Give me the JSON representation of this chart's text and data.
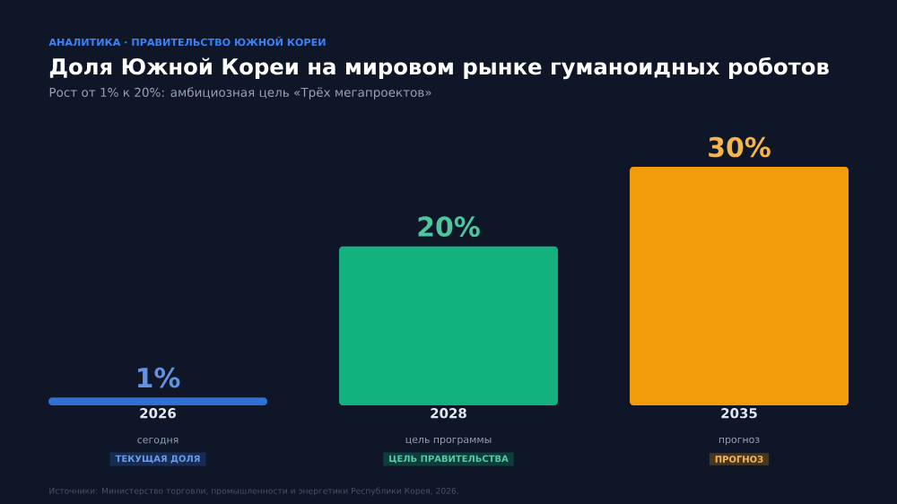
{
  "chart_data": {
    "type": "bar",
    "title": "Доля Южной Кореи на мировом рынке гуманоидных роботов",
    "subtitle": "Рост от 1% к 20%: амбициозная цель «Трёх мегапроектов»",
    "categories": [
      "2026",
      "2028",
      "2035"
    ],
    "values": [
      1,
      20,
      30
    ],
    "value_labels": [
      "1%",
      "20%",
      "30%"
    ],
    "colors": [
      "#2f6fd6",
      "#12b17d",
      "#f29c0b"
    ],
    "ylim": [
      0,
      30
    ],
    "tick_labels": "x",
    "annotations": [
      "АНАЛИТИКА · ПРАВИТЕЛЬСТВО ЮЖНОЙ КОРЕИ",
      "сегодня",
      "ТЕКУЩАЯ ДОЛЯ",
      "цель программы",
      "ЦЕЛЬ ПРАВИТЕЛЬСТВА",
      "прогноз",
      "ПРОГНОЗ",
      "Источники: Министерство торговли, промышленности и энергетики Республики Корея, 2026."
    ]
  }
}
